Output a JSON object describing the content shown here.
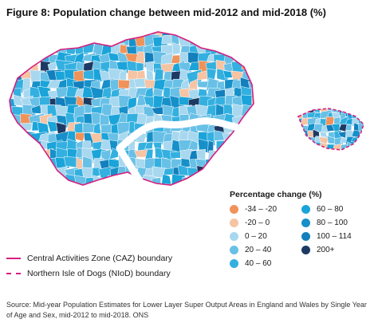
{
  "title": "Figure 8: Population change between mid-2012 and mid-2018 (%)",
  "legend": {
    "title": "Percentage change (%)",
    "items": [
      {
        "label": "-34 – -20",
        "color": "#f0935a"
      },
      {
        "label": "60 – 80",
        "color": "#1aa4d9"
      },
      {
        "label": "-20 – 0",
        "color": "#f6c3a3"
      },
      {
        "label": "80 – 100",
        "color": "#1790c9"
      },
      {
        "label": "0 – 20",
        "color": "#a8d8ef"
      },
      {
        "label": "100 – 114",
        "color": "#137fbc"
      },
      {
        "label": "20 – 40",
        "color": "#68c0e6"
      },
      {
        "label": "200+",
        "color": "#1c3a63"
      },
      {
        "label": "40 – 60",
        "color": "#33b0e0"
      }
    ]
  },
  "boundaries": {
    "caz": "Central Activities Zone (CAZ) boundary",
    "niod": "Northern Isle of Dogs (NIoD) boundary",
    "color": "#d61f7e"
  },
  "source": "Source: Mid-year Population Estimates for Lower Layer Super Output Areas in England and Wales by Single Year of Age and Sex, mid-2012 to mid-2018. ONS"
}
